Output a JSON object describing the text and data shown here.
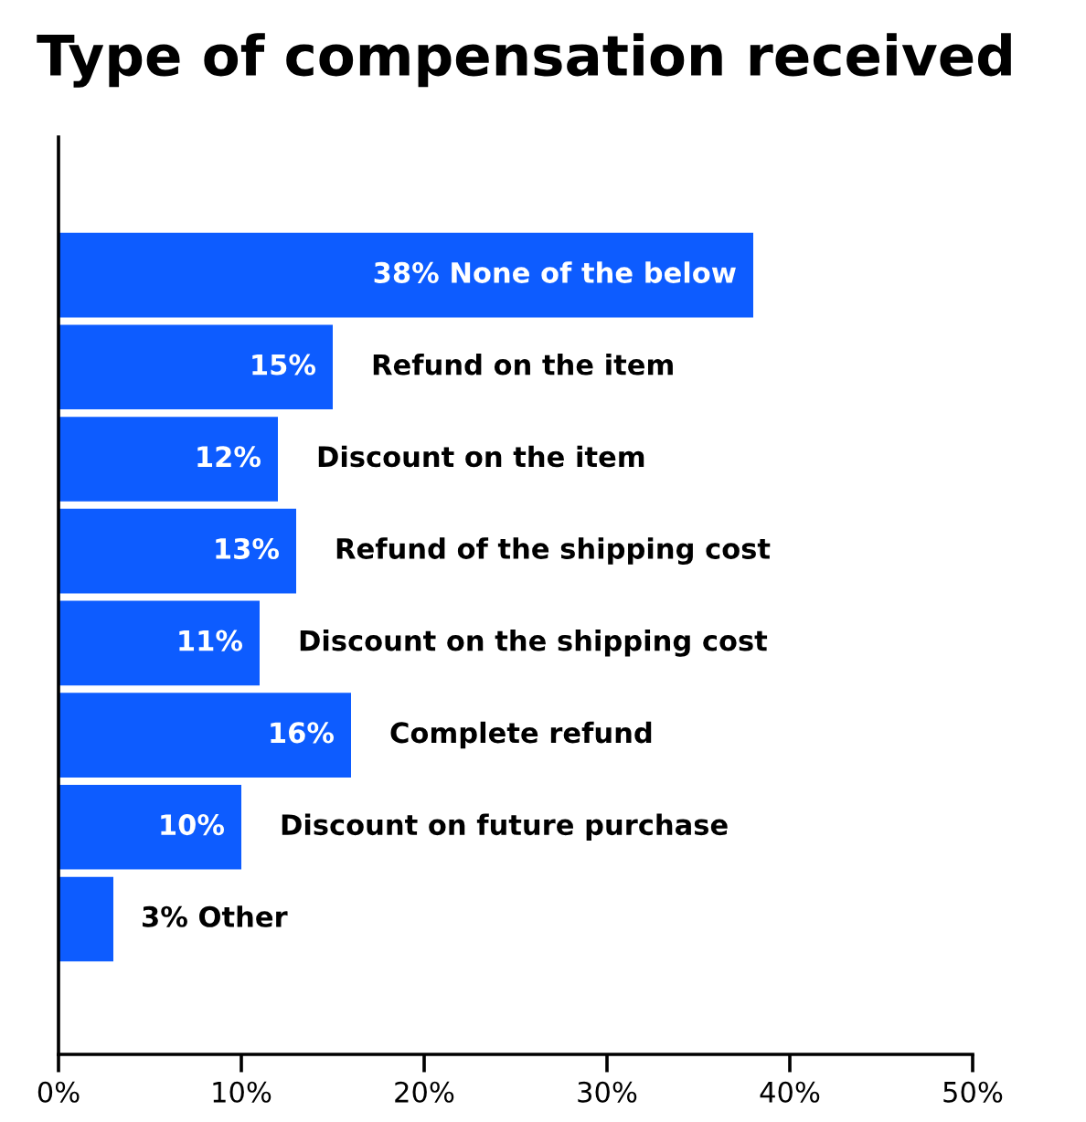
{
  "chart_data": {
    "type": "bar",
    "orientation": "horizontal",
    "title": "Type of compensation received",
    "categories": [
      "None of the below",
      "Refund on the item",
      "Discount on the item",
      "Refund of the shipping cost",
      "Discount on the shipping cost",
      "Complete refund",
      "Discount on future purchase",
      "Other"
    ],
    "values": [
      38,
      15,
      12,
      13,
      11,
      16,
      10,
      3
    ],
    "value_labels": [
      "38%",
      "15%",
      "12%",
      "13%",
      "11%",
      "16%",
      "10%",
      "3%"
    ],
    "color": "#0d5cff",
    "xlim": [
      0,
      50
    ],
    "xticks": [
      {
        "value": 0,
        "label": "0%"
      },
      {
        "value": 10,
        "label": "10%"
      },
      {
        "value": 20,
        "label": "20%"
      },
      {
        "value": 30,
        "label": "30%"
      },
      {
        "value": 40,
        "label": "40%"
      },
      {
        "value": 50,
        "label": "50%"
      }
    ],
    "tick_labels": "x",
    "grid": false,
    "legend": false
  }
}
